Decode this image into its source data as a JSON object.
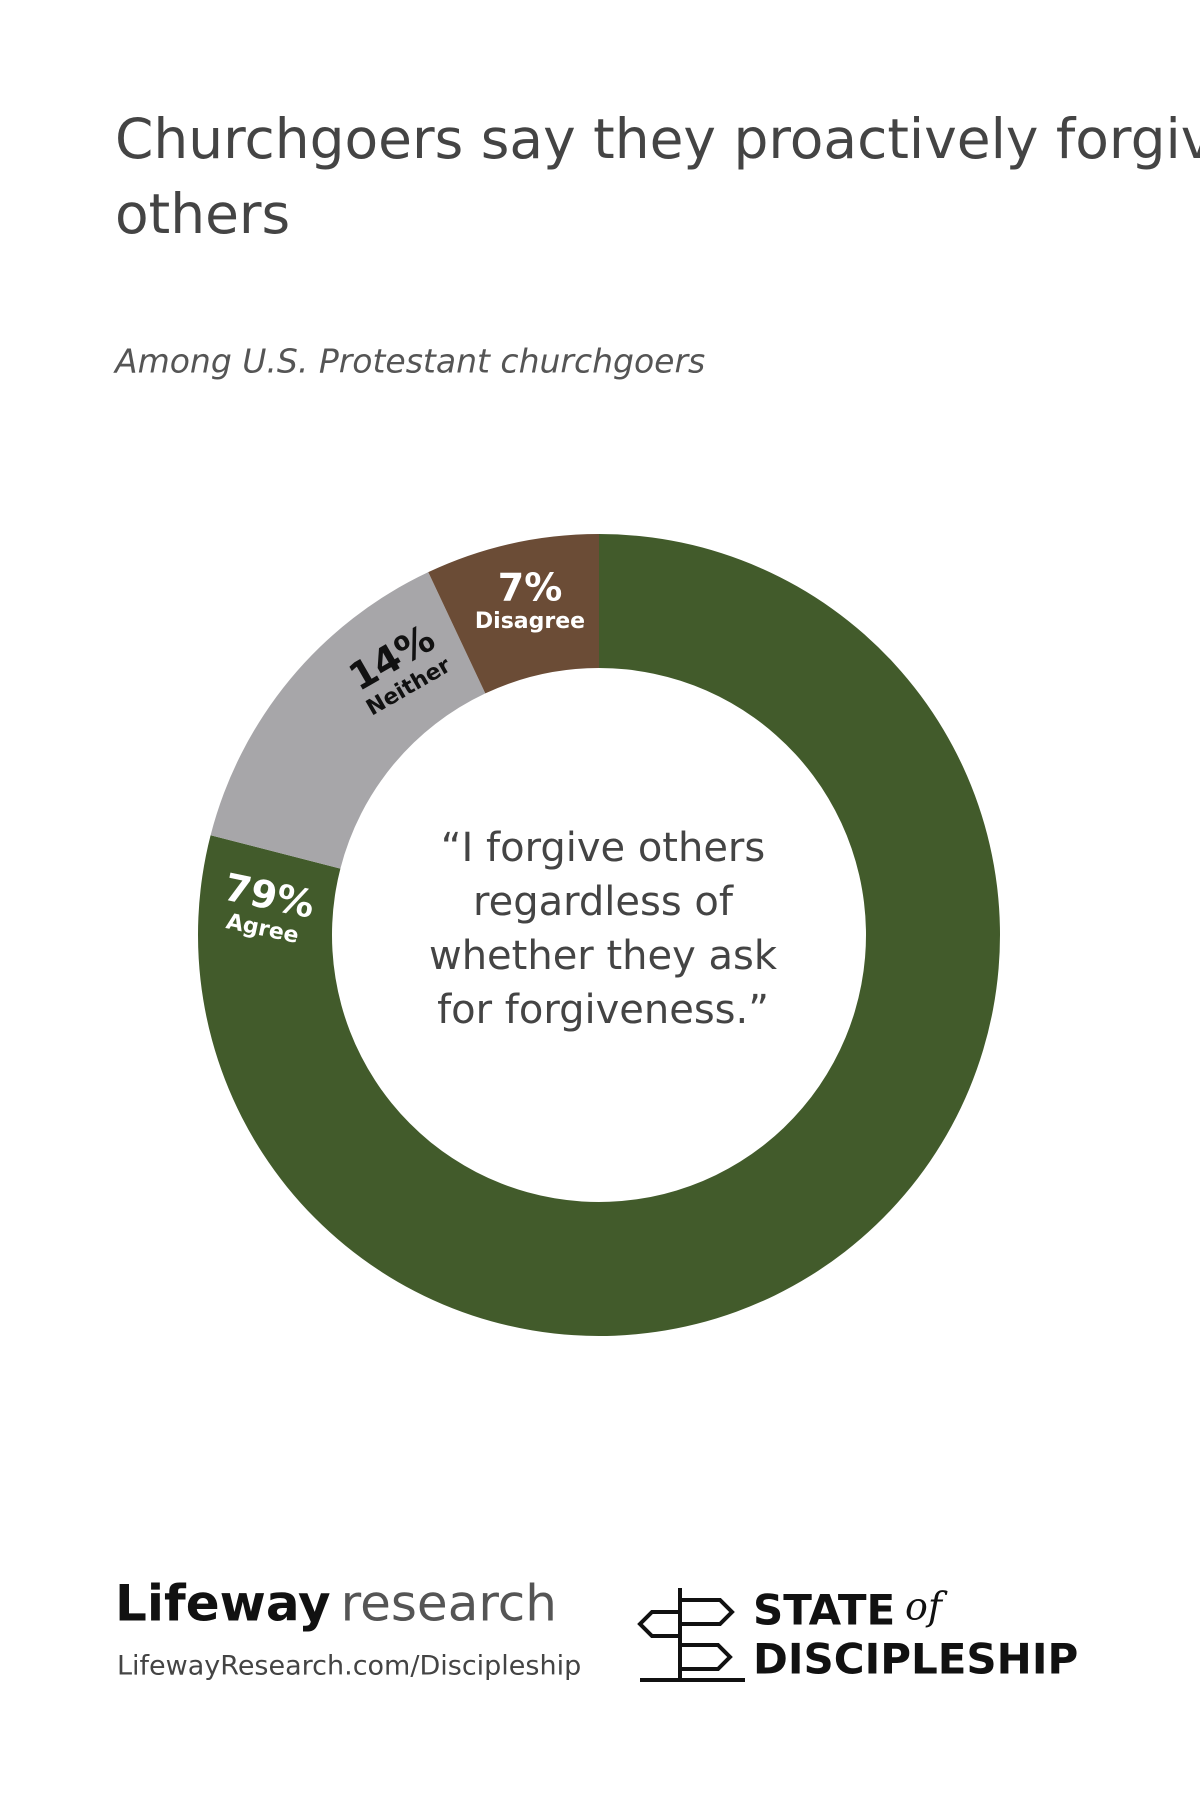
{
  "chart_data": {
    "type": "pie",
    "title": "Churchgoers say they proactively forgive others",
    "subtitle": "Among U.S. Protestant churchgoers",
    "annotation": [
      "“I forgive others",
      "regardless of",
      "whether they ask",
      "for forgiveness.”"
    ],
    "categories": [
      "Agree",
      "Neither",
      "Disagree"
    ],
    "values": [
      79,
      14,
      7
    ],
    "value_labels": [
      "79%",
      "14%",
      "7%"
    ],
    "colors": [
      "#425b2b",
      "#a7a6a9",
      "#6b4c36"
    ]
  },
  "footer": {
    "brand_bold": "Lifeway",
    "brand_light": "research",
    "url": "LifewayResearch.com/Discipleship",
    "badge_top": "STATE",
    "badge_of": "of",
    "badge_bottom": "DISCIPLESHIP"
  }
}
